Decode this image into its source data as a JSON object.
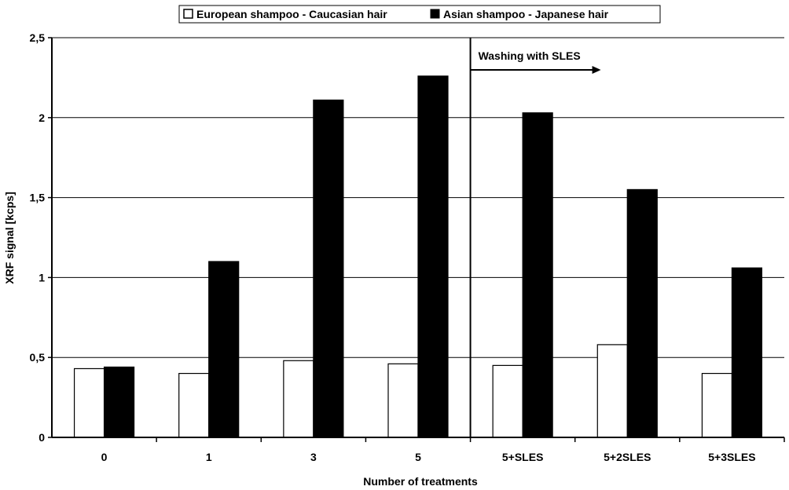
{
  "chart_data": {
    "type": "bar",
    "title": "",
    "xlabel": "Number of treatments",
    "ylabel": "XRF signal [kcps]",
    "ylim": [
      0,
      2.5
    ],
    "yticks": [
      0,
      0.5,
      1,
      1.5,
      2,
      2.5
    ],
    "ytick_labels": [
      "0",
      "0,5",
      "1",
      "1,5",
      "2",
      "2,5"
    ],
    "grid": true,
    "legend_position": "top",
    "categories": [
      "0",
      "1",
      "3",
      "5",
      "5+SLES",
      "5+2SLES",
      "5+3SLES"
    ],
    "series": [
      {
        "name": "European shampoo - Caucasian hair",
        "fill": "#ffffff",
        "values": [
          0.43,
          0.4,
          0.48,
          0.46,
          0.45,
          0.58,
          0.4
        ]
      },
      {
        "name": "Asian shampoo - Japanese hair",
        "fill": "#000000",
        "values": [
          0.44,
          1.1,
          2.11,
          2.26,
          2.03,
          1.55,
          1.06
        ]
      }
    ],
    "annotation": {
      "text": "Washing with SLES",
      "after_category_index": 3
    }
  }
}
